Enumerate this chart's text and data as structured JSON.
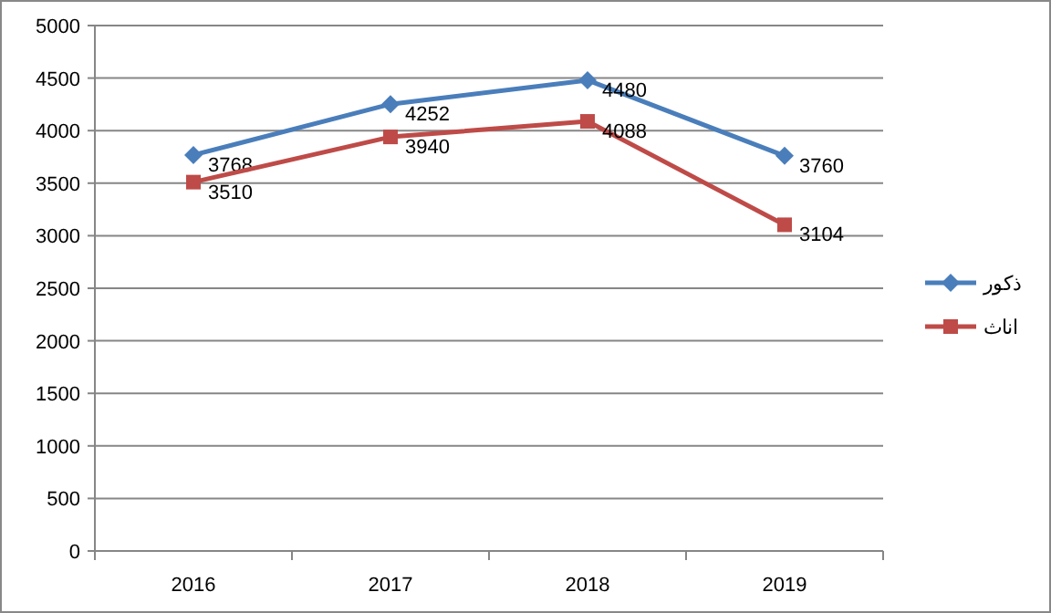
{
  "chart_data": {
    "type": "line",
    "categories": [
      "2016",
      "2017",
      "2018",
      "2019"
    ],
    "series": [
      {
        "name": "ذكور",
        "color": "#4a7ebb",
        "marker": "diamond",
        "values": [
          3768,
          4252,
          4480,
          3760
        ]
      },
      {
        "name": "اناث",
        "color": "#be4b48",
        "marker": "square",
        "values": [
          3510,
          3940,
          4088,
          3104
        ]
      }
    ],
    "ylim": [
      0,
      5000
    ],
    "yticks": [
      0,
      500,
      1000,
      1500,
      2000,
      2500,
      3000,
      3500,
      4000,
      4500,
      5000
    ],
    "grid": "y",
    "legend": "right",
    "data_labels": true
  }
}
